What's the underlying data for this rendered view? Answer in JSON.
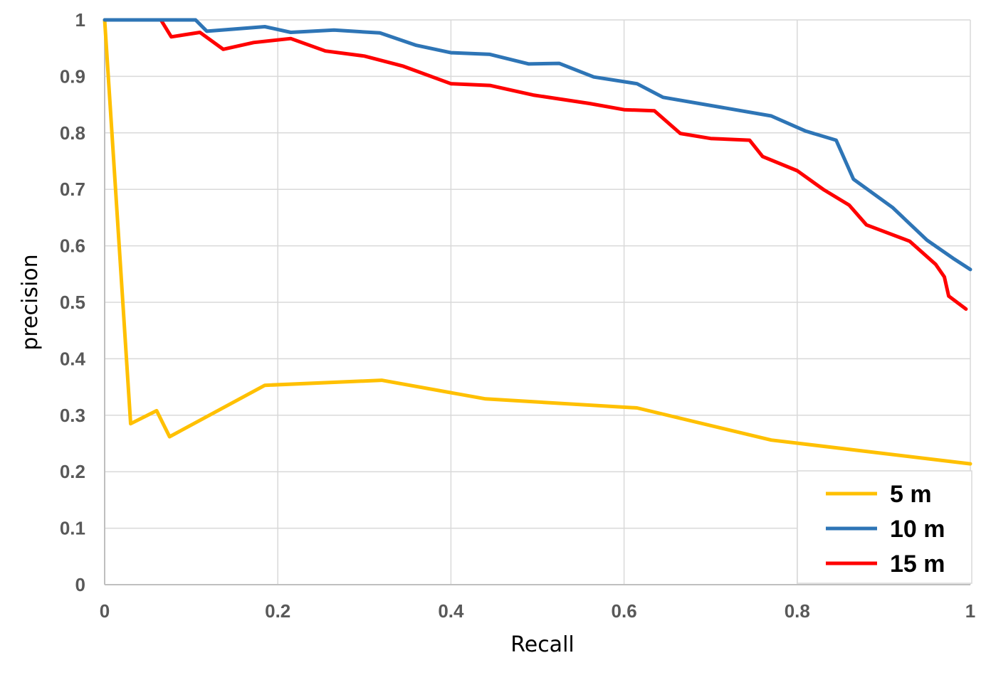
{
  "chart_data": {
    "type": "line",
    "xlabel": "Recall",
    "ylabel": "precision",
    "xlim": [
      0,
      1
    ],
    "ylim": [
      0,
      1
    ],
    "x_ticks": [
      "0",
      "0.2",
      "0.4",
      "0.6",
      "0.8",
      "1"
    ],
    "y_ticks": [
      "0",
      "0.1",
      "0.2",
      "0.3",
      "0.4",
      "0.5",
      "0.6",
      "0.7",
      "0.8",
      "0.9",
      "1"
    ],
    "grid": true,
    "legend_position": "bottom-right",
    "series": [
      {
        "name": "5 m",
        "color": "#FFC000",
        "points": [
          [
            0,
            1
          ],
          [
            0.03,
            0.285
          ],
          [
            0.06,
            0.308
          ],
          [
            0.075,
            0.262
          ],
          [
            0.185,
            0.353
          ],
          [
            0.32,
            0.362
          ],
          [
            0.44,
            0.329
          ],
          [
            0.615,
            0.313
          ],
          [
            0.77,
            0.256
          ],
          [
            1.0,
            0.214
          ]
        ]
      },
      {
        "name": "10 m",
        "color": "#2E75B6",
        "points": [
          [
            0,
            1
          ],
          [
            0.105,
            1
          ],
          [
            0.118,
            0.98
          ],
          [
            0.185,
            0.988
          ],
          [
            0.215,
            0.978
          ],
          [
            0.265,
            0.982
          ],
          [
            0.318,
            0.977
          ],
          [
            0.36,
            0.955
          ],
          [
            0.4,
            0.942
          ],
          [
            0.445,
            0.939
          ],
          [
            0.49,
            0.922
          ],
          [
            0.525,
            0.923
          ],
          [
            0.565,
            0.899
          ],
          [
            0.615,
            0.887
          ],
          [
            0.645,
            0.863
          ],
          [
            0.77,
            0.83
          ],
          [
            0.81,
            0.803
          ],
          [
            0.845,
            0.787
          ],
          [
            0.865,
            0.718
          ],
          [
            0.91,
            0.668
          ],
          [
            0.95,
            0.61
          ],
          [
            0.98,
            0.578
          ],
          [
            1.0,
            0.558
          ]
        ]
      },
      {
        "name": "15 m",
        "color": "#FF0000",
        "points": [
          [
            0.065,
            1
          ],
          [
            0.077,
            0.97
          ],
          [
            0.11,
            0.978
          ],
          [
            0.137,
            0.948
          ],
          [
            0.172,
            0.96
          ],
          [
            0.215,
            0.967
          ],
          [
            0.255,
            0.945
          ],
          [
            0.3,
            0.936
          ],
          [
            0.345,
            0.918
          ],
          [
            0.4,
            0.887
          ],
          [
            0.445,
            0.884
          ],
          [
            0.495,
            0.867
          ],
          [
            0.56,
            0.852
          ],
          [
            0.6,
            0.841
          ],
          [
            0.635,
            0.839
          ],
          [
            0.665,
            0.799
          ],
          [
            0.7,
            0.79
          ],
          [
            0.745,
            0.787
          ],
          [
            0.76,
            0.758
          ],
          [
            0.8,
            0.733
          ],
          [
            0.83,
            0.7
          ],
          [
            0.86,
            0.672
          ],
          [
            0.88,
            0.637
          ],
          [
            0.93,
            0.608
          ],
          [
            0.96,
            0.567
          ],
          [
            0.97,
            0.545
          ],
          [
            0.975,
            0.511
          ],
          [
            0.995,
            0.488
          ]
        ]
      }
    ]
  }
}
